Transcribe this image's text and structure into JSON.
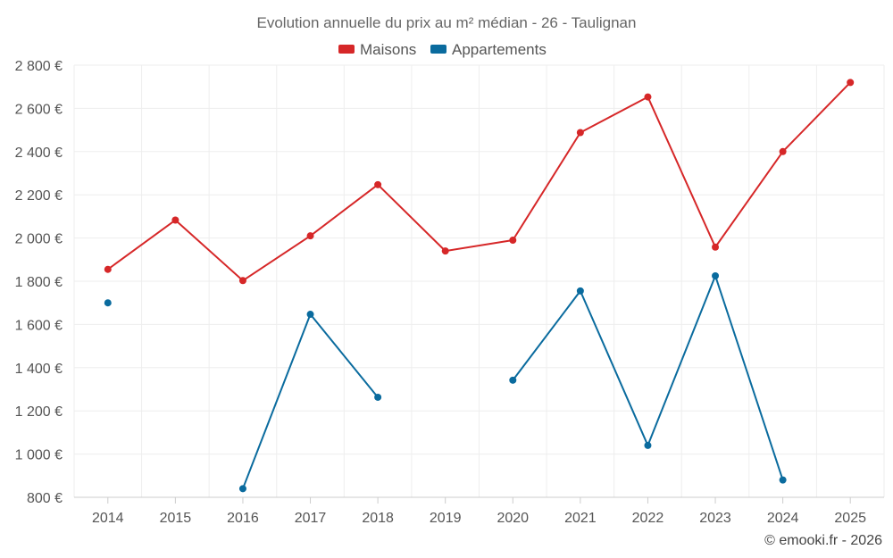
{
  "chart_data": {
    "type": "line",
    "title": "Evolution annuelle du prix au m² médian - 26 - Taulignan",
    "categories": [
      "2014",
      "2015",
      "2016",
      "2017",
      "2018",
      "2019",
      "2020",
      "2021",
      "2022",
      "2023",
      "2024",
      "2025"
    ],
    "series": [
      {
        "name": "Maisons",
        "color": "#d62728",
        "values": [
          1855,
          2083,
          1803,
          2010,
          2247,
          1940,
          1990,
          2488,
          2653,
          1958,
          2400,
          2720
        ]
      },
      {
        "name": "Appartements",
        "color": "#0a6b9e",
        "values": [
          1700,
          null,
          840,
          1647,
          1263,
          null,
          1342,
          1755,
          1040,
          1825,
          880,
          null
        ]
      }
    ],
    "ylim": [
      800,
      2800
    ],
    "yticks": [
      800,
      1000,
      1200,
      1400,
      1600,
      1800,
      2000,
      2200,
      2400,
      2600,
      2800
    ],
    "ytick_labels": [
      "800 €",
      "1 000 €",
      "1 200 €",
      "1 400 €",
      "1 600 €",
      "1 800 €",
      "2 000 €",
      "2 200 €",
      "2 400 €",
      "2 600 €",
      "2 800 €"
    ],
    "xlabel": "",
    "ylabel": "",
    "grid": true,
    "legend_position": "top-center"
  },
  "credit": "© emooki.fr - 2026"
}
